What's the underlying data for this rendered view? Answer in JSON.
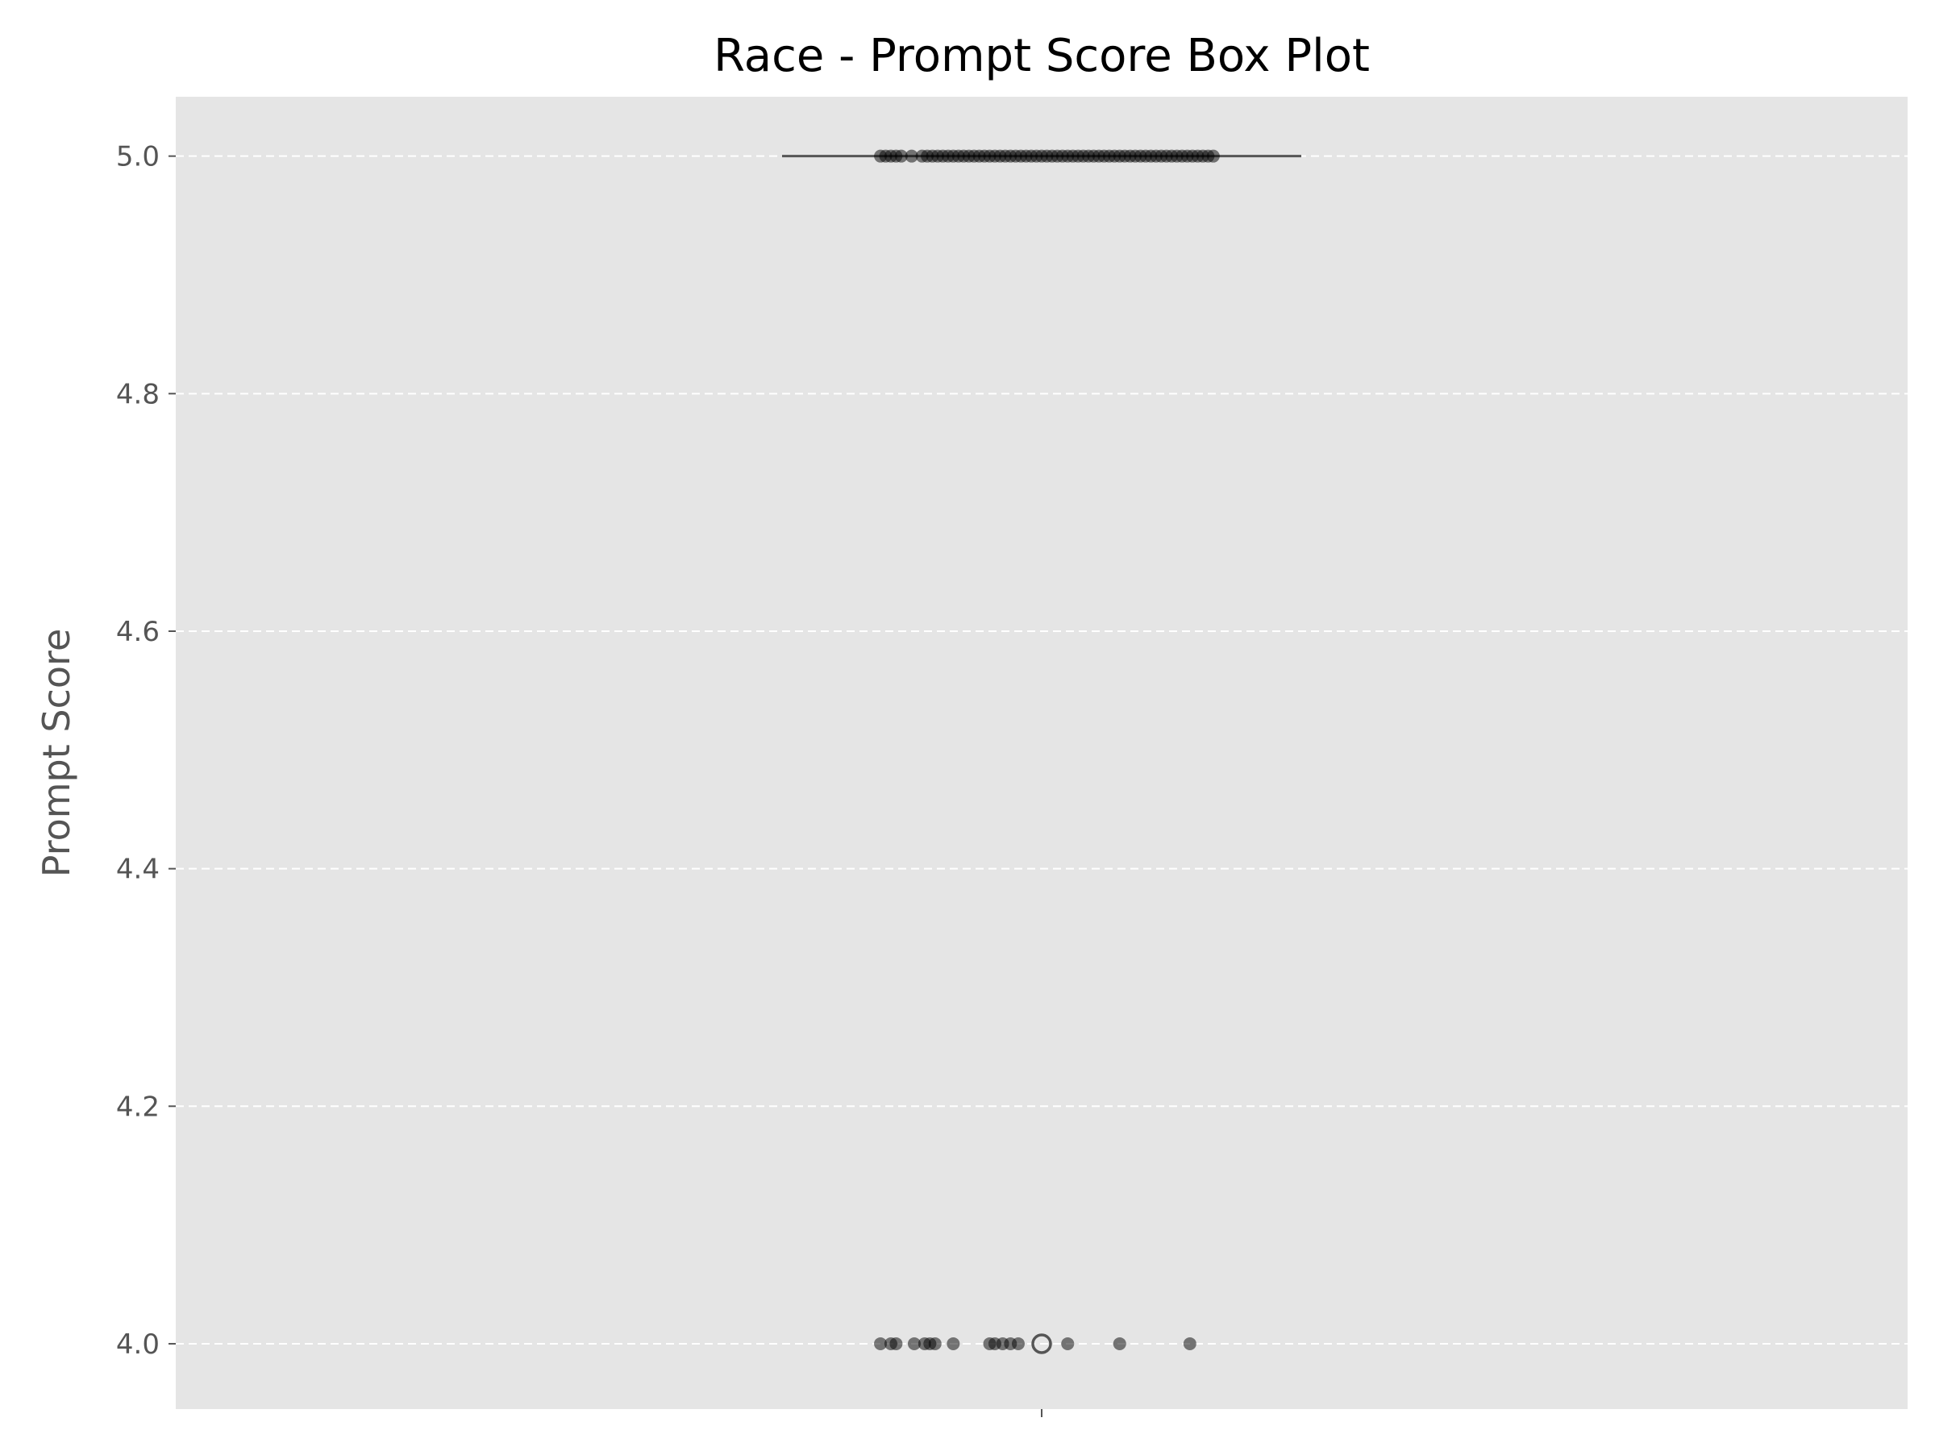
{
  "chart_data": {
    "type": "box",
    "title": "Race - Prompt Score Box Plot",
    "xlabel": "",
    "ylabel": "Prompt Score",
    "ylim": [
      3.945,
      5.05
    ],
    "yticks": [
      4.0,
      4.2,
      4.4,
      4.6,
      4.8,
      5.0
    ],
    "ytick_labels": [
      "4.0",
      "4.2",
      "4.4",
      "4.6",
      "4.8",
      "5.0"
    ],
    "grid": "horizontal-dashed",
    "colors": {
      "plot_background": "#e5e5e5",
      "grid": "#ffffff",
      "box_line": "#555555",
      "point": "#000000"
    },
    "box": {
      "median": 5.0,
      "q1": 5.0,
      "q3": 5.0,
      "whisker_low": 5.0,
      "whisker_high": 5.0,
      "outliers": [
        4.0
      ]
    },
    "points": [
      {
        "x": -0.31,
        "y": 5.0
      },
      {
        "x": -0.3,
        "y": 5.0
      },
      {
        "x": -0.29,
        "y": 5.0
      },
      {
        "x": -0.28,
        "y": 5.0
      },
      {
        "x": -0.27,
        "y": 5.0
      },
      {
        "x": -0.25,
        "y": 5.0
      },
      {
        "x": -0.23,
        "y": 5.0
      },
      {
        "x": -0.22,
        "y": 5.0
      },
      {
        "x": -0.21,
        "y": 5.0
      },
      {
        "x": -0.2,
        "y": 5.0
      },
      {
        "x": -0.19,
        "y": 5.0
      },
      {
        "x": -0.18,
        "y": 5.0
      },
      {
        "x": -0.17,
        "y": 5.0
      },
      {
        "x": -0.16,
        "y": 5.0
      },
      {
        "x": -0.15,
        "y": 5.0
      },
      {
        "x": -0.14,
        "y": 5.0
      },
      {
        "x": -0.13,
        "y": 5.0
      },
      {
        "x": -0.12,
        "y": 5.0
      },
      {
        "x": -0.11,
        "y": 5.0
      },
      {
        "x": -0.1,
        "y": 5.0
      },
      {
        "x": -0.09,
        "y": 5.0
      },
      {
        "x": -0.08,
        "y": 5.0
      },
      {
        "x": -0.07,
        "y": 5.0
      },
      {
        "x": -0.06,
        "y": 5.0
      },
      {
        "x": -0.05,
        "y": 5.0
      },
      {
        "x": -0.04,
        "y": 5.0
      },
      {
        "x": -0.03,
        "y": 5.0
      },
      {
        "x": -0.02,
        "y": 5.0
      },
      {
        "x": -0.01,
        "y": 5.0
      },
      {
        "x": 0.0,
        "y": 5.0
      },
      {
        "x": 0.01,
        "y": 5.0
      },
      {
        "x": 0.02,
        "y": 5.0
      },
      {
        "x": 0.03,
        "y": 5.0
      },
      {
        "x": 0.04,
        "y": 5.0
      },
      {
        "x": 0.05,
        "y": 5.0
      },
      {
        "x": 0.06,
        "y": 5.0
      },
      {
        "x": 0.07,
        "y": 5.0
      },
      {
        "x": 0.08,
        "y": 5.0
      },
      {
        "x": 0.09,
        "y": 5.0
      },
      {
        "x": 0.1,
        "y": 5.0
      },
      {
        "x": 0.11,
        "y": 5.0
      },
      {
        "x": 0.12,
        "y": 5.0
      },
      {
        "x": 0.13,
        "y": 5.0
      },
      {
        "x": 0.14,
        "y": 5.0
      },
      {
        "x": 0.15,
        "y": 5.0
      },
      {
        "x": 0.16,
        "y": 5.0
      },
      {
        "x": 0.17,
        "y": 5.0
      },
      {
        "x": 0.18,
        "y": 5.0
      },
      {
        "x": 0.19,
        "y": 5.0
      },
      {
        "x": 0.2,
        "y": 5.0
      },
      {
        "x": 0.21,
        "y": 5.0
      },
      {
        "x": 0.22,
        "y": 5.0
      },
      {
        "x": 0.23,
        "y": 5.0
      },
      {
        "x": 0.24,
        "y": 5.0
      },
      {
        "x": 0.25,
        "y": 5.0
      },
      {
        "x": 0.26,
        "y": 5.0
      },
      {
        "x": 0.27,
        "y": 5.0
      },
      {
        "x": 0.28,
        "y": 5.0
      },
      {
        "x": 0.29,
        "y": 5.0
      },
      {
        "x": 0.3,
        "y": 5.0
      },
      {
        "x": 0.31,
        "y": 5.0
      },
      {
        "x": 0.32,
        "y": 5.0
      },
      {
        "x": 0.33,
        "y": 5.0
      },
      {
        "x": -0.31,
        "y": 4.0
      },
      {
        "x": -0.29,
        "y": 4.0
      },
      {
        "x": -0.28,
        "y": 4.0
      },
      {
        "x": -0.245,
        "y": 4.0
      },
      {
        "x": -0.225,
        "y": 4.0
      },
      {
        "x": -0.215,
        "y": 4.0
      },
      {
        "x": -0.205,
        "y": 4.0
      },
      {
        "x": -0.17,
        "y": 4.0
      },
      {
        "x": -0.1,
        "y": 4.0
      },
      {
        "x": -0.09,
        "y": 4.0
      },
      {
        "x": -0.075,
        "y": 4.0
      },
      {
        "x": -0.06,
        "y": 4.0
      },
      {
        "x": -0.045,
        "y": 4.0
      },
      {
        "x": 0.05,
        "y": 4.0
      },
      {
        "x": 0.15,
        "y": 4.0
      },
      {
        "x": 0.285,
        "y": 4.0
      }
    ]
  }
}
